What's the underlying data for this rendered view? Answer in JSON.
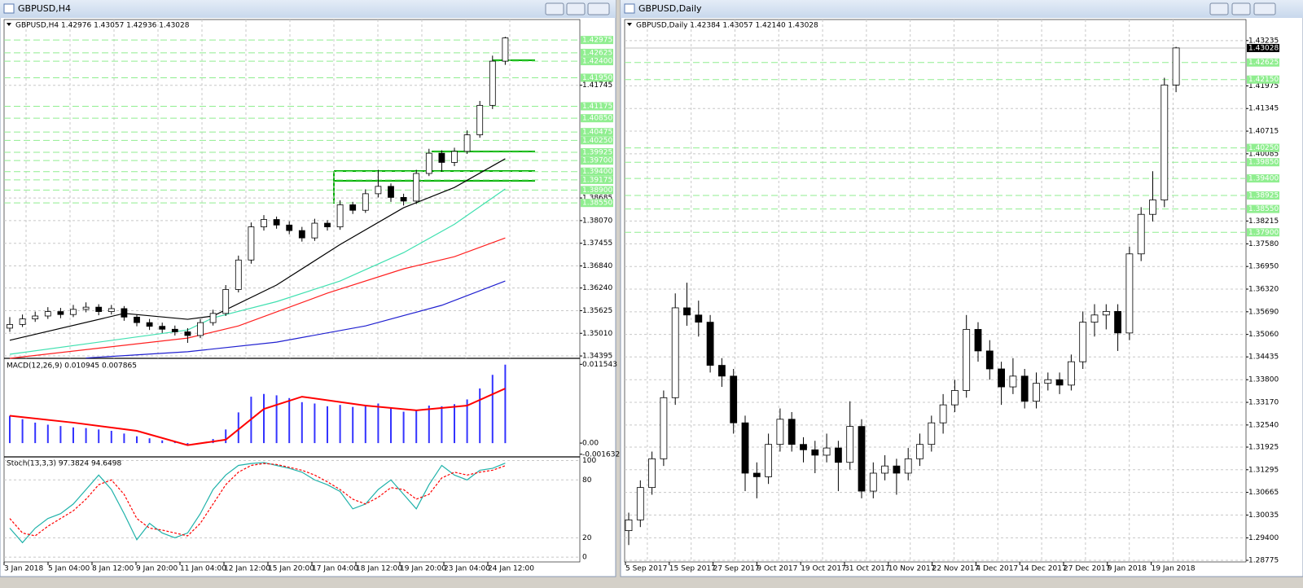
{
  "windows": [
    {
      "title": "GBPUSD,H4",
      "chart": {
        "header": "GBPUSD,H4  1.42976 1.43057 1.42936 1.43028",
        "ylim": [
          1.3433,
          1.4353
        ],
        "yticks": [
          1.41745,
          1.38685,
          {
            "value": 1.3807,
            "label": "1.38070"
          },
          1.37455,
          {
            "value": 1.3684,
            "label": "1.36840"
          },
          {
            "value": 1.3624,
            "label": "1.36240"
          },
          1.35625,
          {
            "value": 1.3501,
            "label": "1.35010"
          },
          1.34395
        ],
        "level_color": "#90ee90",
        "levels": [
          1.42975,
          1.42625,
          {
            "value": 1.424,
            "label": "1.42400"
          },
          {
            "value": 1.4195,
            "label": "1.41950"
          },
          1.41175,
          {
            "value": 1.4085,
            "label": "1.40850"
          },
          1.40475,
          {
            "value": 1.4025,
            "label": "1.40250"
          },
          1.39925,
          {
            "value": 1.397,
            "label": "1.39700"
          },
          {
            "value": 1.394,
            "label": "1.39400"
          },
          1.39175,
          {
            "value": 1.389,
            "label": "1.38900"
          },
          {
            "value": 1.3855,
            "label": "1.38550"
          }
        ],
        "bull_color": "#ffffff",
        "bear_color": "#000000",
        "candles": [
          [
            1.3515,
            1.3545,
            1.3505,
            1.3525
          ],
          [
            1.3525,
            1.3552,
            1.3518,
            1.354
          ],
          [
            1.354,
            1.356,
            1.3532,
            1.3548
          ],
          [
            1.3548,
            1.3572,
            1.354,
            1.356
          ],
          [
            1.356,
            1.357,
            1.3542,
            1.3552
          ],
          [
            1.3552,
            1.3578,
            1.3545,
            1.3566
          ],
          [
            1.3566,
            1.3585,
            1.3558,
            1.3572
          ],
          [
            1.3572,
            1.358,
            1.355,
            1.356
          ],
          [
            1.356,
            1.3578,
            1.3552,
            1.3568
          ],
          [
            1.3568,
            1.3575,
            1.3535,
            1.3545
          ],
          [
            1.3545,
            1.3552,
            1.352,
            1.353
          ],
          [
            1.353,
            1.354,
            1.351,
            1.352
          ],
          [
            1.352,
            1.353,
            1.3502,
            1.3512
          ],
          [
            1.3512,
            1.3522,
            1.3495,
            1.3505
          ],
          [
            1.3505,
            1.3515,
            1.3475,
            1.3495
          ],
          [
            1.3495,
            1.354,
            1.3488,
            1.353
          ],
          [
            1.353,
            1.3565,
            1.3522,
            1.3555
          ],
          [
            1.3555,
            1.3632,
            1.3548,
            1.362
          ],
          [
            1.362,
            1.3712,
            1.3612,
            1.37
          ],
          [
            1.37,
            1.3802,
            1.369,
            1.379
          ],
          [
            1.379,
            1.3822,
            1.378,
            1.381
          ],
          [
            1.381,
            1.3818,
            1.3785,
            1.3795
          ],
          [
            1.3795,
            1.3805,
            1.377,
            1.378
          ],
          [
            1.378,
            1.379,
            1.375,
            1.376
          ],
          [
            1.376,
            1.3812,
            1.3752,
            1.38
          ],
          [
            1.38,
            1.3808,
            1.378,
            1.379
          ],
          [
            1.379,
            1.3862,
            1.3782,
            1.385
          ],
          [
            1.385,
            1.3858,
            1.3825,
            1.3835
          ],
          [
            1.3835,
            1.3892,
            1.3828,
            1.388
          ],
          [
            1.388,
            1.3945,
            1.387,
            1.39
          ],
          [
            1.39,
            1.3908,
            1.3858,
            1.387
          ],
          [
            1.387,
            1.388,
            1.3848,
            1.386
          ],
          [
            1.386,
            1.3945,
            1.3852,
            1.3935
          ],
          [
            1.3935,
            1.4002,
            1.3928,
            1.399
          ],
          [
            1.399,
            1.3998,
            1.394,
            1.3965
          ],
          [
            1.3965,
            1.4005,
            1.3955,
            1.3995
          ],
          [
            1.3995,
            1.4052,
            1.3988,
            1.404
          ],
          [
            1.404,
            1.4132,
            1.4032,
            1.412
          ],
          [
            1.412,
            1.4255,
            1.411,
            1.424
          ],
          [
            1.424,
            1.4306,
            1.423,
            1.4303
          ]
        ],
        "moving_averages": [
          {
            "color": "#000000",
            "x": [
              0,
              9,
              14,
              16,
              21,
              26,
              31,
              35,
              39
            ],
            "values": [
              1.3482,
              1.3555,
              1.3539,
              1.3548,
              1.3632,
              1.3742,
              1.3842,
              1.3897,
              1.3975
            ]
          },
          {
            "color": "#40e0b0",
            "x": [
              0,
              14,
              16,
              21,
              26,
              31,
              35,
              39
            ],
            "values": [
              1.3444,
              1.351,
              1.3543,
              1.3587,
              1.3643,
              1.372,
              1.3797,
              1.3893
            ]
          },
          {
            "color": "#ff2020",
            "x": [
              0,
              14,
              18,
              25,
              31,
              35,
              39
            ],
            "values": [
              1.3433,
              1.3488,
              1.3521,
              1.361,
              1.3676,
              1.3709,
              1.376
            ]
          },
          {
            "color": "#2020d0",
            "x": [
              6,
              14,
              21,
              28,
              34,
              39
            ],
            "values": [
              1.3434,
              1.3451,
              1.3477,
              1.3521,
              1.3577,
              1.3643
            ]
          }
        ],
        "time_labels": [
          "3 Jan 2018",
          "5 Jan 04:00",
          "8 Jan 12:00",
          "9 Jan 20:00",
          "11 Jan 04:00",
          "12 Jan 12:00",
          "15 Jan 20:00",
          "17 Jan 04:00",
          "18 Jan 12:00",
          "19 Jan 20:00",
          "23 Jan 04:00",
          "24 Jan 12:00"
        ],
        "macd": {
          "header": "MACD(12,26,9) 0.010945 0.007865",
          "ylim": [
            -0.0019,
            0.0123
          ],
          "yticks": [
            0.011543,
            {
              "value": 0,
              "label": "0.00"
            },
            -0.001632
          ],
          "histogram_color": "#3333ff",
          "histogram": [
            0.004,
            0.0035,
            0.003,
            0.0027,
            0.0025,
            0.0023,
            0.0022,
            0.002,
            0.0018,
            0.0014,
            0.001,
            0.0007,
            0.0004,
            0.0002,
            -0.0002,
            0.0,
            0.0006,
            0.002,
            0.0045,
            0.0068,
            0.0072,
            0.007,
            0.0066,
            0.006,
            0.0058,
            0.0054,
            0.0056,
            0.0053,
            0.0056,
            0.0058,
            0.0052,
            0.0046,
            0.0048,
            0.0055,
            0.0054,
            0.0057,
            0.0064,
            0.008,
            0.01,
            0.0115
          ],
          "signal_color": "#ff0000",
          "signal_x": [
            0,
            5,
            10,
            14,
            17,
            20,
            23,
            28,
            32,
            36,
            39
          ],
          "signal": [
            0.004,
            0.003,
            0.0018,
            -0.0003,
            0.0005,
            0.005,
            0.0068,
            0.0055,
            0.0048,
            0.0055,
            0.008
          ]
        },
        "stoch": {
          "header": "Stoch(13,3,3) 97.3824 94.6498",
          "ylim": [
            -5,
            103
          ],
          "yticks": [
            100,
            80,
            20,
            0
          ],
          "main_color": "#20b2aa",
          "main": [
            30,
            15,
            30,
            40,
            45,
            55,
            70,
            85,
            70,
            45,
            18,
            35,
            25,
            20,
            25,
            45,
            70,
            85,
            95,
            97,
            98,
            95,
            92,
            88,
            80,
            75,
            68,
            50,
            55,
            70,
            80,
            65,
            50,
            75,
            95,
            85,
            80,
            90,
            92,
            97.3824
          ],
          "signal_color": "#ff0000",
          "signal": [
            40,
            25,
            22,
            32,
            40,
            48,
            60,
            75,
            80,
            65,
            40,
            30,
            28,
            25,
            22,
            35,
            55,
            75,
            88,
            95,
            97,
            96,
            93,
            90,
            85,
            78,
            70,
            60,
            55,
            62,
            72,
            70,
            60,
            65,
            82,
            88,
            85,
            88,
            90,
            94.6498
          ]
        }
      }
    },
    {
      "title": "GBPUSD,Daily",
      "chart": {
        "header": "GBPUSD,Daily  1.42384 1.43057 1.42140 1.43028",
        "ylim": [
          1.2873,
          1.4382
        ],
        "yticks": [
          1.43235,
          1.41975,
          1.41345,
          1.40715,
          1.40085,
          1.38215,
          {
            "value": 1.3758,
            "label": "1.37580"
          },
          {
            "value": 1.3695,
            "label": "1.36950"
          },
          {
            "value": 1.3632,
            "label": "1.36320"
          },
          {
            "value": 1.3569,
            "label": "1.35690"
          },
          {
            "value": 1.3506,
            "label": "1.35060"
          },
          1.34435,
          {
            "value": 1.338,
            "label": "1.33800"
          },
          {
            "value": 1.3317,
            "label": "1.33170"
          },
          {
            "value": 1.3254,
            "label": "1.32540"
          },
          1.31925,
          1.31295,
          1.30665,
          1.30035,
          {
            "value": 1.294,
            "label": "1.29400"
          },
          1.28775
        ],
        "level_color": "#90ee90",
        "levels": [
          1.42625,
          {
            "value": 1.4215,
            "label": "1.42150"
          },
          {
            "value": 1.4025,
            "label": "1.40250"
          },
          {
            "value": 1.3985,
            "label": "1.39850"
          },
          {
            "value": 1.394,
            "label": "1.39400"
          },
          1.38925,
          {
            "value": 1.3855,
            "label": "1.38550"
          },
          {
            "value": 1.379,
            "label": "1.37900"
          }
        ],
        "current_price": 1.43028,
        "bull_color": "#ffffff",
        "bear_color": "#000000",
        "candles": [
          [
            1.296,
            1.301,
            1.292,
            1.299
          ],
          [
            1.299,
            1.31,
            1.297,
            1.308
          ],
          [
            1.308,
            1.318,
            1.306,
            1.316
          ],
          [
            1.316,
            1.335,
            1.314,
            1.333
          ],
          [
            1.333,
            1.362,
            1.331,
            1.358
          ],
          [
            1.358,
            1.365,
            1.353,
            1.356
          ],
          [
            1.356,
            1.36,
            1.35,
            1.354
          ],
          [
            1.354,
            1.356,
            1.34,
            1.342
          ],
          [
            1.342,
            1.344,
            1.336,
            1.339
          ],
          [
            1.339,
            1.341,
            1.323,
            1.326
          ],
          [
            1.326,
            1.328,
            1.307,
            1.312
          ],
          [
            1.312,
            1.315,
            1.305,
            1.311
          ],
          [
            1.311,
            1.323,
            1.309,
            1.32
          ],
          [
            1.32,
            1.33,
            1.318,
            1.327
          ],
          [
            1.327,
            1.329,
            1.318,
            1.32
          ],
          [
            1.32,
            1.322,
            1.315,
            1.3185
          ],
          [
            1.3185,
            1.321,
            1.312,
            1.317
          ],
          [
            1.317,
            1.323,
            1.315,
            1.319
          ],
          [
            1.319,
            1.321,
            1.307,
            1.315
          ],
          [
            1.315,
            1.332,
            1.313,
            1.325
          ],
          [
            1.325,
            1.327,
            1.305,
            1.307
          ],
          [
            1.307,
            1.315,
            1.305,
            1.312
          ],
          [
            1.312,
            1.317,
            1.31,
            1.314
          ],
          [
            1.314,
            1.316,
            1.306,
            1.312
          ],
          [
            1.312,
            1.319,
            1.31,
            1.316
          ],
          [
            1.316,
            1.323,
            1.314,
            1.32
          ],
          [
            1.32,
            1.328,
            1.318,
            1.326
          ],
          [
            1.326,
            1.334,
            1.323,
            1.331
          ],
          [
            1.331,
            1.338,
            1.329,
            1.335
          ],
          [
            1.335,
            1.356,
            1.333,
            1.352
          ],
          [
            1.352,
            1.354,
            1.343,
            1.346
          ],
          [
            1.346,
            1.349,
            1.338,
            1.341
          ],
          [
            1.341,
            1.343,
            1.331,
            1.336
          ],
          [
            1.336,
            1.344,
            1.334,
            1.339
          ],
          [
            1.339,
            1.341,
            1.33,
            1.332
          ],
          [
            1.332,
            1.34,
            1.33,
            1.337
          ],
          [
            1.337,
            1.34,
            1.335,
            1.338
          ],
          [
            1.338,
            1.34,
            1.334,
            1.3365
          ],
          [
            1.3365,
            1.345,
            1.335,
            1.343
          ],
          [
            1.343,
            1.357,
            1.341,
            1.354
          ],
          [
            1.354,
            1.359,
            1.35,
            1.356
          ],
          [
            1.356,
            1.359,
            1.352,
            1.357
          ],
          [
            1.357,
            1.359,
            1.346,
            1.351
          ],
          [
            1.351,
            1.375,
            1.349,
            1.373
          ],
          [
            1.373,
            1.386,
            1.371,
            1.384
          ],
          [
            1.384,
            1.396,
            1.382,
            1.388
          ],
          [
            1.388,
            1.422,
            1.386,
            1.42
          ],
          [
            1.42,
            1.4306,
            1.418,
            1.4303
          ]
        ],
        "time_labels": [
          "5 Sep 2017",
          "15 Sep 2017",
          "27 Sep 2017",
          "9 Oct 2017",
          "19 Oct 2017",
          "31 Oct 2017",
          "10 Nov 2017",
          "22 Nov 2017",
          "4 Dec 2017",
          "14 Dec 2017",
          "27 Dec 2017",
          "9 Jan 2018",
          "19 Jan 2018"
        ]
      }
    }
  ]
}
